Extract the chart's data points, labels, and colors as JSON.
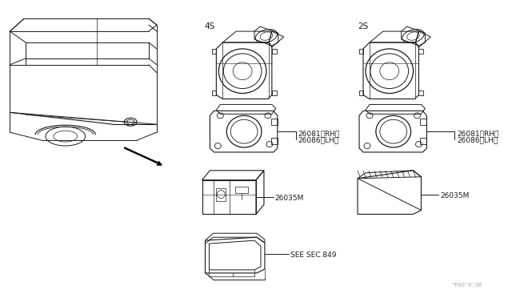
{
  "bg_color": "#ffffff",
  "line_color": "#1a1a1a",
  "title_4s": "4S",
  "title_2s": "2S",
  "label_26081_rh": "26081〈RH〉",
  "label_26086_lh": "26086〈LH〉",
  "label_26035m": "26035M",
  "label_see_sec": "SEE SEC.849",
  "label_bottom_right": "^P60^0:3R",
  "fig_width": 6.4,
  "fig_height": 3.72,
  "dpi": 100
}
